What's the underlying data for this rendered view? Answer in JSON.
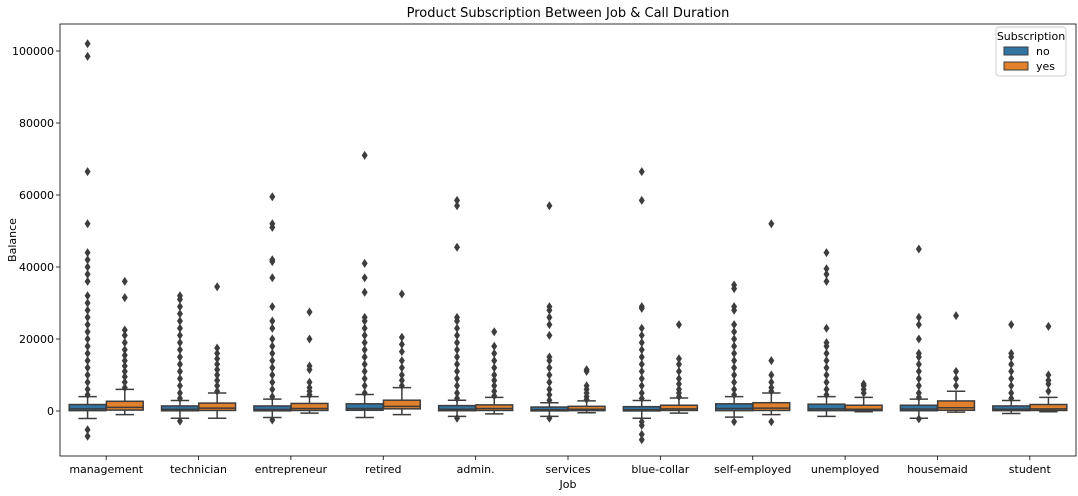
{
  "chart_data": {
    "type": "box",
    "title": "Product Subscription Between Job & Call Duration",
    "xlabel": "Job",
    "ylabel": "Balance",
    "ylim": [
      -12500,
      107500
    ],
    "yticks": [
      0,
      20000,
      40000,
      60000,
      80000,
      100000
    ],
    "grid": false,
    "legend": {
      "title": "Subscription",
      "placement": "top-right"
    },
    "categories": [
      "management",
      "technician",
      "entrepreneur",
      "retired",
      "admin.",
      "services",
      "blue-collar",
      "self-employed",
      "unemployed",
      "housemaid",
      "student"
    ],
    "series": [
      {
        "name": "no",
        "color": "#3274a1",
        "boxes": [
          {
            "whislo": -2100,
            "q1": 100,
            "med": 600,
            "q3": 1800,
            "whishi": 4000,
            "fliers": [
              -7000,
              -5200,
              4500,
              6000,
              8000,
              10000,
              12000,
              14000,
              16000,
              18000,
              20000,
              22000,
              24000,
              26000,
              28000,
              30000,
              32000,
              36000,
              38000,
              40000,
              42000,
              44000,
              52000,
              66500,
              98500,
              102000
            ]
          },
          {
            "whislo": -2000,
            "q1": 60,
            "med": 450,
            "q3": 1400,
            "whishi": 2900,
            "fliers": [
              -2800,
              3500,
              5000,
              7000,
              9000,
              11000,
              13000,
              15000,
              17000,
              19000,
              21000,
              23000,
              25000,
              27000,
              29000,
              31000,
              32000
            ]
          },
          {
            "whislo": -1800,
            "q1": 40,
            "med": 400,
            "q3": 1400,
            "whishi": 3300,
            "fliers": [
              -2500,
              4000,
              6000,
              8000,
              10000,
              12000,
              14000,
              16000,
              18000,
              20000,
              23000,
              25000,
              29000,
              37000,
              41500,
              42000,
              51000,
              52000,
              59500
            ]
          },
          {
            "whislo": -1800,
            "q1": 200,
            "med": 700,
            "q3": 2000,
            "whishi": 4600,
            "fliers": [
              5000,
              7000,
              9000,
              11000,
              13000,
              15000,
              17000,
              19000,
              21000,
              23000,
              25000,
              26000,
              33000,
              37000,
              41000,
              71000
            ]
          },
          {
            "whislo": -1500,
            "q1": 80,
            "med": 500,
            "q3": 1500,
            "whishi": 3000,
            "fliers": [
              -2000,
              3500,
              5000,
              7000,
              9000,
              11000,
              13000,
              15000,
              17000,
              19000,
              21000,
              23000,
              25000,
              26000,
              45500,
              57000,
              58500
            ]
          },
          {
            "whislo": -1500,
            "q1": 30,
            "med": 350,
            "q3": 1100,
            "whishi": 2300,
            "fliers": [
              -2000,
              3000,
              4500,
              6000,
              8000,
              10000,
              12000,
              14000,
              15000,
              21000,
              24000,
              26000,
              28000,
              29000,
              57000
            ]
          },
          {
            "whislo": -2000,
            "q1": 20,
            "med": 350,
            "q3": 1200,
            "whishi": 2900,
            "fliers": [
              -8000,
              -6500,
              -4000,
              -3000,
              3500,
              5000,
              7000,
              9000,
              11000,
              13000,
              15000,
              17000,
              19000,
              21000,
              23000,
              28500,
              29000,
              58500,
              66500
            ]
          },
          {
            "whislo": -1700,
            "q1": 100,
            "med": 700,
            "q3": 2000,
            "whishi": 4000,
            "fliers": [
              -3000,
              4500,
              6000,
              8000,
              10000,
              12000,
              14000,
              16000,
              18000,
              20000,
              22000,
              24000,
              28000,
              29000,
              34000,
              35000
            ]
          },
          {
            "whislo": -1500,
            "q1": 100,
            "med": 600,
            "q3": 1900,
            "whishi": 4000,
            "fliers": [
              4500,
              6000,
              8000,
              10000,
              12000,
              14000,
              16000,
              18000,
              19000,
              23000,
              36000,
              38000,
              39500,
              44000
            ]
          },
          {
            "whislo": -2000,
            "q1": 80,
            "med": 550,
            "q3": 1600,
            "whishi": 3300,
            "fliers": [
              -2200,
              3800,
              5000,
              7000,
              9000,
              11000,
              13000,
              15000,
              16000,
              20000,
              24000,
              26000,
              45000
            ]
          },
          {
            "whislo": -700,
            "q1": 100,
            "med": 500,
            "q3": 1400,
            "whishi": 2900,
            "fliers": [
              3500,
              5000,
              7000,
              9000,
              11000,
              13000,
              15000,
              16000,
              24000
            ]
          }
        ]
      },
      {
        "name": "yes",
        "color": "#e1812c",
        "boxes": [
          {
            "whislo": -1000,
            "q1": 250,
            "med": 1000,
            "q3": 2700,
            "whishi": 6000,
            "fliers": [
              6500,
              8000,
              9500,
              11000,
              12500,
              14000,
              15500,
              17000,
              19000,
              21000,
              22500,
              31500,
              36000
            ]
          },
          {
            "whislo": -2000,
            "q1": 150,
            "med": 800,
            "q3": 2200,
            "whishi": 5000,
            "fliers": [
              5500,
              7000,
              8500,
              10000,
              11500,
              13000,
              14500,
              16000,
              17500,
              34500
            ]
          },
          {
            "whislo": -600,
            "q1": 150,
            "med": 700,
            "q3": 2100,
            "whishi": 4000,
            "fliers": [
              4500,
              5500,
              6500,
              8000,
              11500,
              12500,
              20000,
              27500
            ]
          },
          {
            "whislo": -1000,
            "q1": 600,
            "med": 1300,
            "q3": 3000,
            "whishi": 6500,
            "fliers": [
              7000,
              8500,
              10000,
              12000,
              14000,
              16500,
              18500,
              20500,
              32500
            ]
          },
          {
            "whislo": -800,
            "q1": 150,
            "med": 700,
            "q3": 1700,
            "whishi": 3800,
            "fliers": [
              4200,
              5500,
              7000,
              8500,
              10000,
              12000,
              14000,
              16000,
              18000,
              22000
            ]
          },
          {
            "whislo": -500,
            "q1": 100,
            "med": 500,
            "q3": 1300,
            "whishi": 2800,
            "fliers": [
              3200,
              4000,
              5000,
              6000,
              7000,
              11000,
              11500
            ]
          },
          {
            "whislo": -600,
            "q1": 150,
            "med": 600,
            "q3": 1600,
            "whishi": 3600,
            "fliers": [
              4000,
              5000,
              6000,
              7500,
              9000,
              11000,
              13000,
              14500,
              24000
            ]
          },
          {
            "whislo": -1000,
            "q1": 150,
            "med": 800,
            "q3": 2300,
            "whishi": 5000,
            "fliers": [
              -3000,
              5500,
              6500,
              8000,
              10000,
              14000,
              52000
            ]
          },
          {
            "whislo": -200,
            "q1": 100,
            "med": 500,
            "q3": 1600,
            "whishi": 3800,
            "fliers": [
              5000,
              6000,
              7000,
              7500
            ]
          },
          {
            "whislo": -300,
            "q1": 200,
            "med": 900,
            "q3": 2800,
            "whishi": 5500,
            "fliers": [
              7000,
              9000,
              11000,
              26500
            ]
          },
          {
            "whislo": -200,
            "q1": 150,
            "med": 600,
            "q3": 1800,
            "whishi": 3800,
            "fliers": [
              5500,
              7500,
              8500,
              10000,
              23500
            ]
          }
        ]
      }
    ]
  }
}
